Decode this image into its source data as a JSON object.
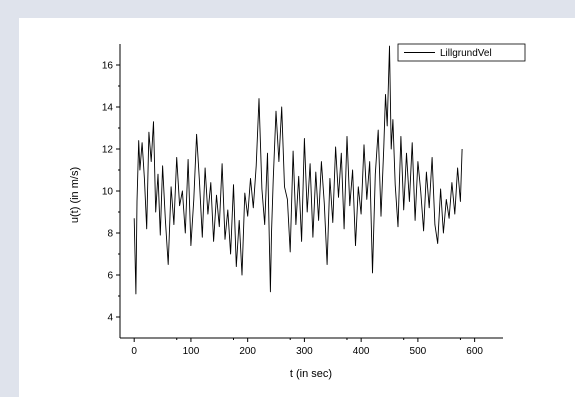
{
  "chart_data": {
    "type": "line",
    "title": "",
    "xlabel": "t (in sec)",
    "ylabel": "u(t) (in m/s)",
    "xlim": [
      -25,
      650
    ],
    "ylim": [
      3,
      17
    ],
    "xticks": [
      0,
      100,
      200,
      300,
      400,
      500,
      600
    ],
    "yticks": [
      4,
      6,
      8,
      10,
      12,
      14,
      16
    ],
    "grid": false,
    "legend_position": "top-right",
    "series": [
      {
        "name": "LillgrundVel",
        "color": "#000000",
        "x": [
          0,
          3,
          5,
          8,
          10,
          14,
          18,
          22,
          26,
          30,
          34,
          38,
          42,
          46,
          50,
          55,
          60,
          65,
          70,
          75,
          80,
          85,
          90,
          95,
          100,
          105,
          110,
          115,
          120,
          125,
          130,
          135,
          140,
          145,
          150,
          155,
          160,
          165,
          170,
          175,
          180,
          185,
          190,
          195,
          200,
          205,
          210,
          215,
          220,
          225,
          230,
          235,
          240,
          242,
          245,
          250,
          255,
          260,
          265,
          270,
          275,
          280,
          285,
          290,
          295,
          300,
          305,
          310,
          315,
          320,
          325,
          330,
          335,
          340,
          345,
          350,
          355,
          360,
          365,
          370,
          375,
          380,
          385,
          390,
          395,
          400,
          405,
          410,
          415,
          420,
          425,
          430,
          435,
          440,
          443,
          446,
          450,
          453,
          456,
          460,
          465,
          470,
          475,
          480,
          485,
          490,
          495,
          500,
          505,
          510,
          515,
          520,
          525,
          530,
          535,
          540,
          545,
          550,
          555,
          560,
          565,
          570,
          575,
          578
        ],
        "values": [
          8.7,
          5.1,
          9.5,
          12.4,
          11.0,
          12.3,
          10.6,
          8.2,
          12.8,
          11.4,
          13.3,
          9.0,
          10.8,
          7.9,
          11.2,
          8.6,
          6.5,
          10.2,
          8.4,
          11.6,
          9.3,
          10.0,
          8.0,
          11.5,
          7.4,
          9.6,
          12.7,
          10.5,
          7.8,
          11.1,
          8.9,
          10.4,
          7.6,
          9.8,
          8.3,
          11.3,
          7.7,
          9.1,
          7.0,
          10.3,
          6.4,
          8.6,
          6.0,
          9.9,
          8.8,
          10.6,
          9.2,
          11.2,
          14.4,
          10.1,
          8.4,
          11.8,
          5.2,
          8.0,
          10.5,
          13.8,
          11.4,
          14.0,
          10.2,
          9.6,
          7.1,
          11.9,
          8.4,
          10.7,
          7.6,
          12.5,
          9.0,
          11.3,
          7.8,
          10.9,
          8.6,
          11.4,
          9.4,
          6.5,
          10.6,
          8.5,
          12.1,
          9.7,
          11.8,
          8.2,
          12.6,
          9.3,
          11.0,
          7.4,
          10.2,
          8.9,
          12.2,
          9.6,
          11.4,
          6.1,
          10.8,
          12.9,
          8.8,
          12.1,
          14.6,
          13.1,
          16.9,
          12.0,
          13.4,
          10.3,
          8.3,
          12.6,
          9.1,
          11.8,
          9.5,
          12.3,
          8.6,
          11.4,
          10.0,
          8.1,
          10.9,
          9.2,
          11.6,
          8.4,
          7.5,
          10.1,
          8.0,
          9.6,
          8.7,
          10.4,
          8.9,
          11.1,
          9.5,
          12.0
        ]
      }
    ]
  }
}
